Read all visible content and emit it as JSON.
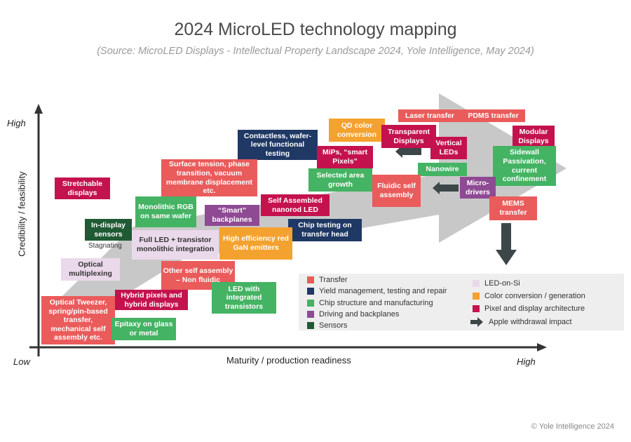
{
  "title": "2024 MicroLED technology mapping",
  "subtitle": "(Source: MicroLED Displays - Intellectual Property Landscape 2024, Yole Intelligence, May 2024)",
  "axes": {
    "y_label": "Credibility / feasibility",
    "x_label": "Maturity / production readiness",
    "y_high": "High",
    "low": "Low",
    "x_high": "High"
  },
  "stagnating_label": "Stagnating",
  "colors": {
    "transfer": "#ea5b5b",
    "yield": "#1f3864",
    "chip": "#44b363",
    "drive": "#8e4a93",
    "sensor": "#1f5a34",
    "lod": "#ead9ea",
    "color": "#f4a22f",
    "pixel": "#c4124e",
    "arrow": "#c8c8c8",
    "apple_arrow": "#3d4749"
  },
  "technologies": [
    {
      "label": "Laser transfer",
      "category": "transfer"
    },
    {
      "label": "PDMS transfer",
      "category": "transfer"
    },
    {
      "label": "QD color conversion",
      "category": "color"
    },
    {
      "label": "Transparent Displays",
      "category": "pixel"
    },
    {
      "label": "Modular Displays",
      "category": "pixel"
    },
    {
      "label": "Contactless, wafer-level functional testing",
      "category": "yield"
    },
    {
      "label": "MiPs, “smart Pixels”",
      "category": "pixel"
    },
    {
      "label": "Vertical LEDs",
      "category": "pixel"
    },
    {
      "label": "Sidewall Passivation, current confinement",
      "category": "chip"
    },
    {
      "label": "Surface tension, phase transition, vacuum membrane displacement etc.",
      "category": "transfer"
    },
    {
      "label": "Nanowire",
      "category": "chip"
    },
    {
      "label": "Selected area growth",
      "category": "chip"
    },
    {
      "label": "Fluidic self assembly",
      "category": "transfer"
    },
    {
      "label": "Micro-drivers",
      "category": "drive"
    },
    {
      "label": "Stretchable displays",
      "category": "pixel"
    },
    {
      "label": "Monolithic RGB on same wafer",
      "category": "chip"
    },
    {
      "label": "Self Assembled nanorod LED",
      "category": "pixel"
    },
    {
      "label": "MEMS transfer",
      "category": "transfer"
    },
    {
      "label": "“Smart” backplanes",
      "category": "drive"
    },
    {
      "label": "In-display sensors",
      "category": "sensor"
    },
    {
      "label": "Chip testing on transfer head",
      "category": "yield"
    },
    {
      "label": "Full LED + transistor monolithic integration",
      "category": "lod"
    },
    {
      "label": "High efficiency red GaN emitters",
      "category": "color"
    },
    {
      "label": "Optical multiplexing",
      "category": "lod"
    },
    {
      "label": "Other self assembly – Non fluidic",
      "category": "transfer"
    },
    {
      "label": "LED with integrated transistors",
      "category": "chip"
    },
    {
      "label": "Hybrid pixels and hybrid displays",
      "category": "pixel"
    },
    {
      "label": "Optical Tweezer, spring/pin-based transfer, mechanical self assembly etc.",
      "category": "transfer"
    },
    {
      "label": "Epitaxy on glass or metal",
      "category": "chip"
    }
  ],
  "legend": {
    "transfer": "Transfer",
    "yield": "Yield management, testing and repair",
    "chip": "Chip structure and manufacturing",
    "drive": "Driving and backplanes",
    "sensor": "Sensors",
    "lod": "LED-on-Si",
    "color": "Color conversion / generation",
    "pixel": "Pixel and display architecture",
    "apple": "Apple withdrawal impact"
  },
  "copyright": "© Yole Intelligence 2024"
}
